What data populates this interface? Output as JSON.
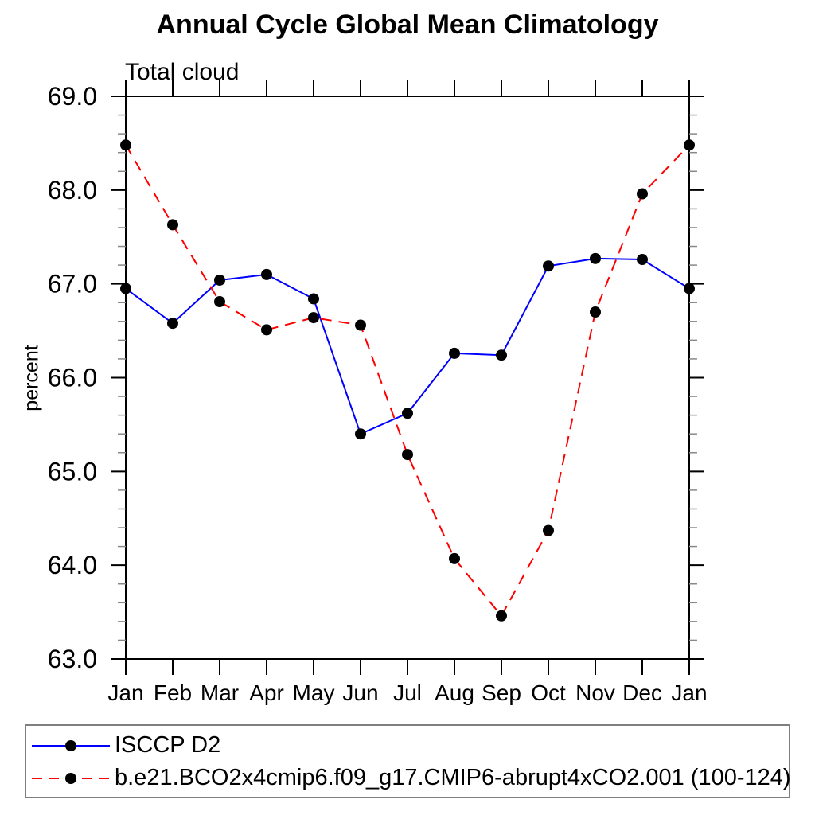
{
  "page": {
    "background": "#ffffff"
  },
  "chart_data": {
    "type": "line",
    "title": "Annual Cycle Global Mean Climatology",
    "subtitle": "Total cloud",
    "ylabel": "percent",
    "xlabel": "",
    "categories": [
      "Jan",
      "Feb",
      "Mar",
      "Apr",
      "May",
      "Jun",
      "Jul",
      "Aug",
      "Sep",
      "Oct",
      "Nov",
      "Dec",
      "Jan"
    ],
    "ylim": [
      63.0,
      69.0
    ],
    "ytick_interval": 1.0,
    "yminor_interval": 0.2,
    "ytick_labels": [
      "63.0",
      "64.0",
      "65.0",
      "66.0",
      "67.0",
      "68.0",
      "69.0"
    ],
    "grid": false,
    "legend_position": "bottom-left-box",
    "frame_color": "#000000",
    "minor_tick_color": "#888888",
    "marker_color": "#000000",
    "series": [
      {
        "name": "ISCCP D2",
        "color": "#0000ff",
        "style": "solid",
        "marker": "circle",
        "values": [
          66.95,
          66.58,
          67.04,
          67.1,
          66.84,
          65.4,
          65.62,
          66.26,
          66.24,
          67.19,
          67.27,
          67.26,
          66.95
        ]
      },
      {
        "name": "b.e21.BCO2x4cmip6.f09_g17.CMIP6-abrupt4xCO2.001 (100-124)",
        "color": "#ff0000",
        "style": "dashed",
        "marker": "circle",
        "values": [
          68.48,
          67.63,
          66.81,
          66.51,
          66.64,
          66.56,
          65.18,
          64.07,
          63.46,
          64.37,
          66.7,
          67.96,
          68.48
        ]
      }
    ]
  }
}
